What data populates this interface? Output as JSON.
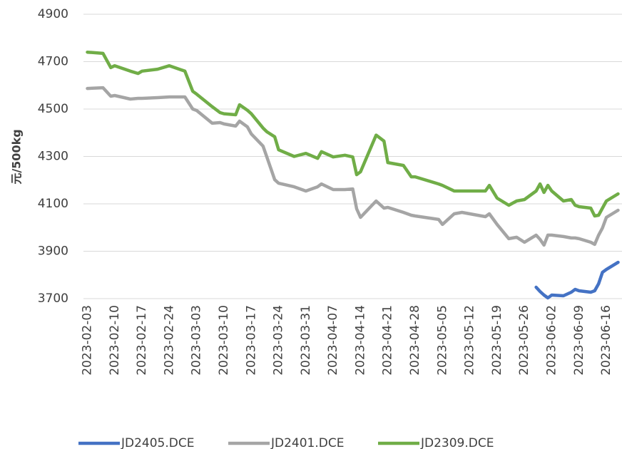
{
  "chart_data": {
    "type": "line",
    "y_label": "元/500kg",
    "x": [
      "2023-02-03",
      "2023-02-07",
      "2023-02-09",
      "2023-02-10",
      "2023-02-14",
      "2023-02-16",
      "2023-02-17",
      "2023-02-21",
      "2023-02-24",
      "2023-02-28",
      "2023-03-02",
      "2023-03-03",
      "2023-03-07",
      "2023-03-09",
      "2023-03-10",
      "2023-03-13",
      "2023-03-14",
      "2023-03-16",
      "2023-03-17",
      "2023-03-20",
      "2023-03-21",
      "2023-03-23",
      "2023-03-24",
      "2023-03-28",
      "2023-03-31",
      "2023-04-03",
      "2023-04-04",
      "2023-04-07",
      "2023-04-10",
      "2023-04-12",
      "2023-04-13",
      "2023-04-14",
      "2023-04-18",
      "2023-04-20",
      "2023-04-21",
      "2023-04-25",
      "2023-04-27",
      "2023-04-28",
      "2023-05-04",
      "2023-05-05",
      "2023-05-08",
      "2023-05-10",
      "2023-05-12",
      "2023-05-16",
      "2023-05-17",
      "2023-05-19",
      "2023-05-22",
      "2023-05-24",
      "2023-05-26",
      "2023-05-29",
      "2023-05-30",
      "2023-05-31",
      "2023-06-01",
      "2023-06-02",
      "2023-06-05",
      "2023-06-07",
      "2023-06-08",
      "2023-06-09",
      "2023-06-12",
      "2023-06-13",
      "2023-06-14",
      "2023-06-15",
      "2023-06-16",
      "2023-06-19"
    ],
    "series": [
      {
        "name": "JD2405.DCE",
        "color": "#4472c4",
        "values": [
          null,
          null,
          null,
          null,
          null,
          null,
          null,
          null,
          null,
          null,
          null,
          null,
          null,
          null,
          null,
          null,
          null,
          null,
          null,
          null,
          null,
          null,
          null,
          null,
          null,
          null,
          null,
          null,
          null,
          null,
          null,
          null,
          null,
          null,
          null,
          null,
          null,
          null,
          null,
          null,
          null,
          null,
          null,
          null,
          null,
          null,
          null,
          null,
          null,
          3748,
          3730,
          3715,
          3703,
          3715,
          3712,
          3727,
          3739,
          3733,
          3727,
          3733,
          3763,
          3811,
          3823,
          3853
        ]
      },
      {
        "name": "JD2401.DCE",
        "color": "#a5a5a5",
        "values": [
          4587,
          4590,
          4554,
          4557,
          4542,
          4545,
          4545,
          4548,
          4551,
          4551,
          4500,
          4494,
          4440,
          4443,
          4437,
          4428,
          4449,
          4425,
          4395,
          4344,
          4298,
          4202,
          4187,
          4172,
          4154,
          4172,
          4184,
          4160,
          4160,
          4163,
          4079,
          4043,
          4112,
          4082,
          4085,
          4064,
          4052,
          4049,
          4034,
          4013,
          4058,
          4064,
          4058,
          4046,
          4058,
          4013,
          3953,
          3959,
          3938,
          3968,
          3950,
          3926,
          3968,
          3968,
          3962,
          3956,
          3956,
          3953,
          3938,
          3929,
          3968,
          3998,
          4043,
          4073
        ]
      },
      {
        "name": "JD2309.DCE",
        "color": "#70ad47",
        "values": [
          4740,
          4735,
          4675,
          4683,
          4660,
          4650,
          4660,
          4668,
          4683,
          4660,
          4575,
          4563,
          4510,
          4485,
          4480,
          4476,
          4518,
          4495,
          4480,
          4420,
          4404,
          4383,
          4328,
          4300,
          4313,
          4292,
          4320,
          4298,
          4305,
          4298,
          4223,
          4235,
          4390,
          4365,
          4274,
          4262,
          4214,
          4214,
          4184,
          4178,
          4154,
          4154,
          4154,
          4154,
          4178,
          4124,
          4094,
          4112,
          4118,
          4154,
          4184,
          4148,
          4178,
          4154,
          4112,
          4118,
          4094,
          4088,
          4082,
          4049,
          4052,
          4082,
          4112,
          4142
        ]
      }
    ],
    "xlim": [
      "2023-02-02",
      "2023-06-20"
    ],
    "xticks": [
      "2023-02-03",
      "2023-02-10",
      "2023-02-17",
      "2023-02-24",
      "2023-03-03",
      "2023-03-10",
      "2023-03-17",
      "2023-03-24",
      "2023-03-31",
      "2023-04-07",
      "2023-04-14",
      "2023-04-21",
      "2023-04-28",
      "2023-05-05",
      "2023-05-12",
      "2023-05-19",
      "2023-05-26",
      "2023-06-02",
      "2023-06-09",
      "2023-06-16"
    ],
    "ylim": [
      3700,
      4900
    ],
    "yticks": [
      3700,
      3900,
      4100,
      4300,
      4500,
      4700,
      4900
    ],
    "grid": true,
    "legend": "bottom"
  }
}
